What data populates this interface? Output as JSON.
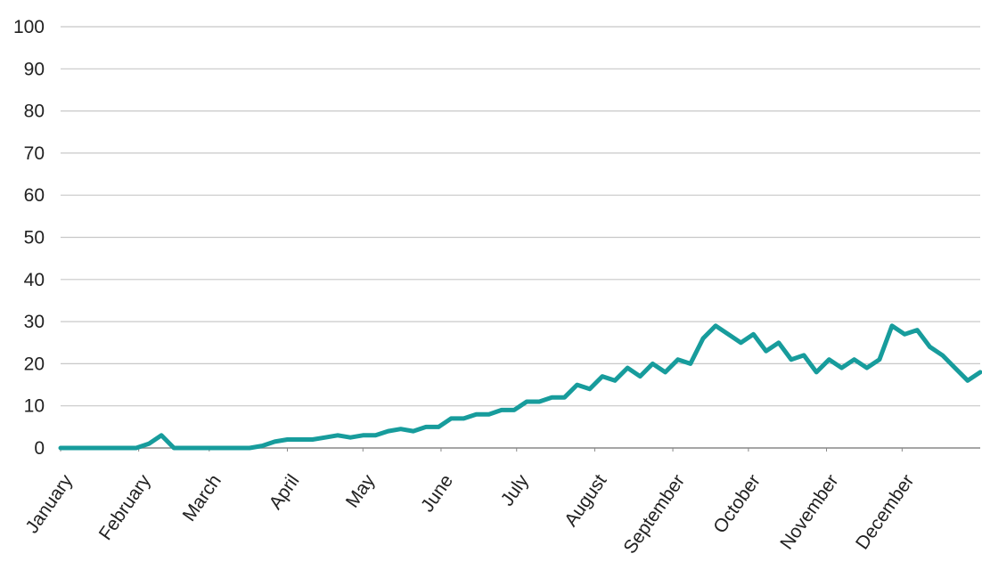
{
  "chart_data": {
    "type": "line",
    "x": [
      0,
      5,
      10,
      15,
      20,
      25,
      30,
      35,
      40,
      45,
      50,
      55,
      60,
      65,
      70,
      75,
      80,
      85,
      90,
      95,
      100,
      105,
      110,
      115,
      120,
      125,
      130,
      135,
      140,
      145,
      150,
      155,
      160,
      165,
      170,
      175,
      180,
      185,
      190,
      195,
      200,
      205,
      210,
      215,
      220,
      225,
      230,
      235,
      240,
      245,
      250,
      255,
      260,
      265,
      270,
      275,
      280,
      285,
      290,
      295,
      300,
      305,
      310,
      315,
      320,
      325,
      330,
      335,
      340,
      345,
      350,
      355,
      360,
      365
    ],
    "values": [
      0,
      0,
      0,
      0,
      0,
      0,
      0,
      1,
      3,
      0,
      0,
      0,
      0,
      0,
      0,
      0,
      0.5,
      1.5,
      2,
      2,
      2,
      2.5,
      3,
      2.5,
      3,
      3,
      4,
      4.5,
      4,
      5,
      5,
      7,
      7,
      8,
      8,
      9,
      9,
      11,
      11,
      12,
      12,
      15,
      14,
      17,
      16,
      19,
      17,
      20,
      18,
      21,
      20,
      26,
      29,
      27,
      25,
      27,
      23,
      25,
      21,
      22,
      18,
      21,
      19,
      21,
      19,
      21,
      29,
      27,
      28,
      24,
      22,
      19,
      16,
      18
    ],
    "color": "#179c9c",
    "xlim": [
      0,
      365
    ],
    "xticks": [
      {
        "value": 0,
        "label": "January"
      },
      {
        "value": 31,
        "label": "February"
      },
      {
        "value": 59,
        "label": "March"
      },
      {
        "value": 90,
        "label": "April"
      },
      {
        "value": 120,
        "label": "May"
      },
      {
        "value": 151,
        "label": "June"
      },
      {
        "value": 181,
        "label": "July"
      },
      {
        "value": 212,
        "label": "August"
      },
      {
        "value": 243,
        "label": "September"
      },
      {
        "value": 273,
        "label": "October"
      },
      {
        "value": 304,
        "label": "November"
      },
      {
        "value": 334,
        "label": "December"
      }
    ],
    "ylim": [
      0,
      100
    ],
    "yticks": [
      0,
      10,
      20,
      30,
      40,
      50,
      60,
      70,
      80,
      90,
      100
    ],
    "grid": true
  }
}
